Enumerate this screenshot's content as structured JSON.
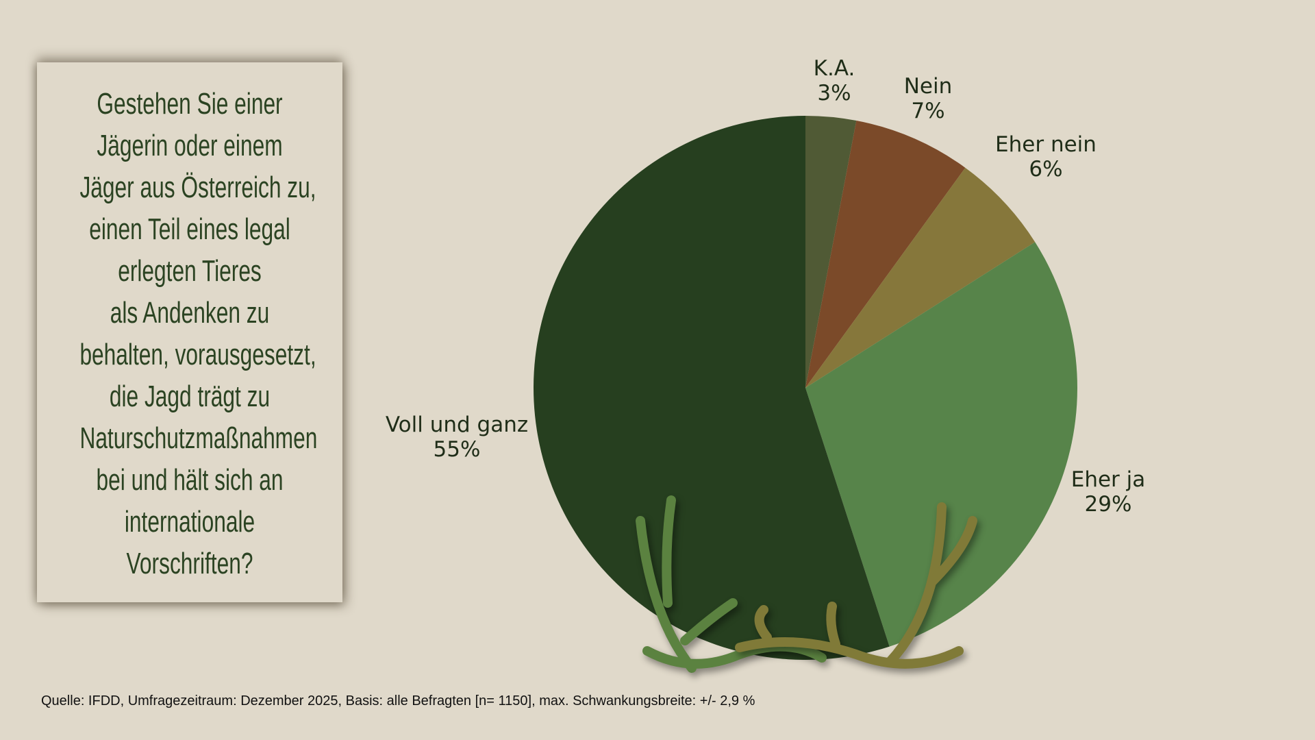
{
  "question": {
    "lines": [
      "Gestehen Sie einer",
      "Jägerin oder einem",
      "Jäger aus Österreich zu,",
      "einen Teil eines legal",
      "erlegten Tieres",
      "als Andenken zu",
      "behalten, vorausgesetzt,",
      "die Jagd trägt zu",
      "Naturschutzmaßnahmen",
      "bei und hält sich an",
      "internationale",
      "Vorschriften?"
    ]
  },
  "chart_data": {
    "type": "pie",
    "title": "Gestehen Sie einer Jägerin oder einem Jäger aus Österreich zu, einen Teil eines legal erlegten Tieres als Andenken zu behalten, vorausgesetzt, die Jagd trägt zu Naturschutzmaßnahmen bei und hält sich an internationale Vorschriften?",
    "slices": [
      {
        "label": "K.A.",
        "value": 3,
        "value_label": "3%",
        "color": "#505a35"
      },
      {
        "label": "Nein",
        "value": 7,
        "value_label": "7%",
        "color": "#7b4a29"
      },
      {
        "label": "Eher nein",
        "value": 6,
        "value_label": "6%",
        "color": "#86773b"
      },
      {
        "label": "Eher ja",
        "value": 29,
        "value_label": "29%",
        "color": "#57844a"
      },
      {
        "label": "Voll und ganz",
        "value": 55,
        "value_label": "55%",
        "color": "#263f1f"
      }
    ]
  },
  "footer": {
    "source": "Quelle: IFDD, Umfragezeitraum: Dezember 2025, Basis: alle Befragten [n= 1150], max. Schwankungsbreite: +/- 2,9 %"
  }
}
